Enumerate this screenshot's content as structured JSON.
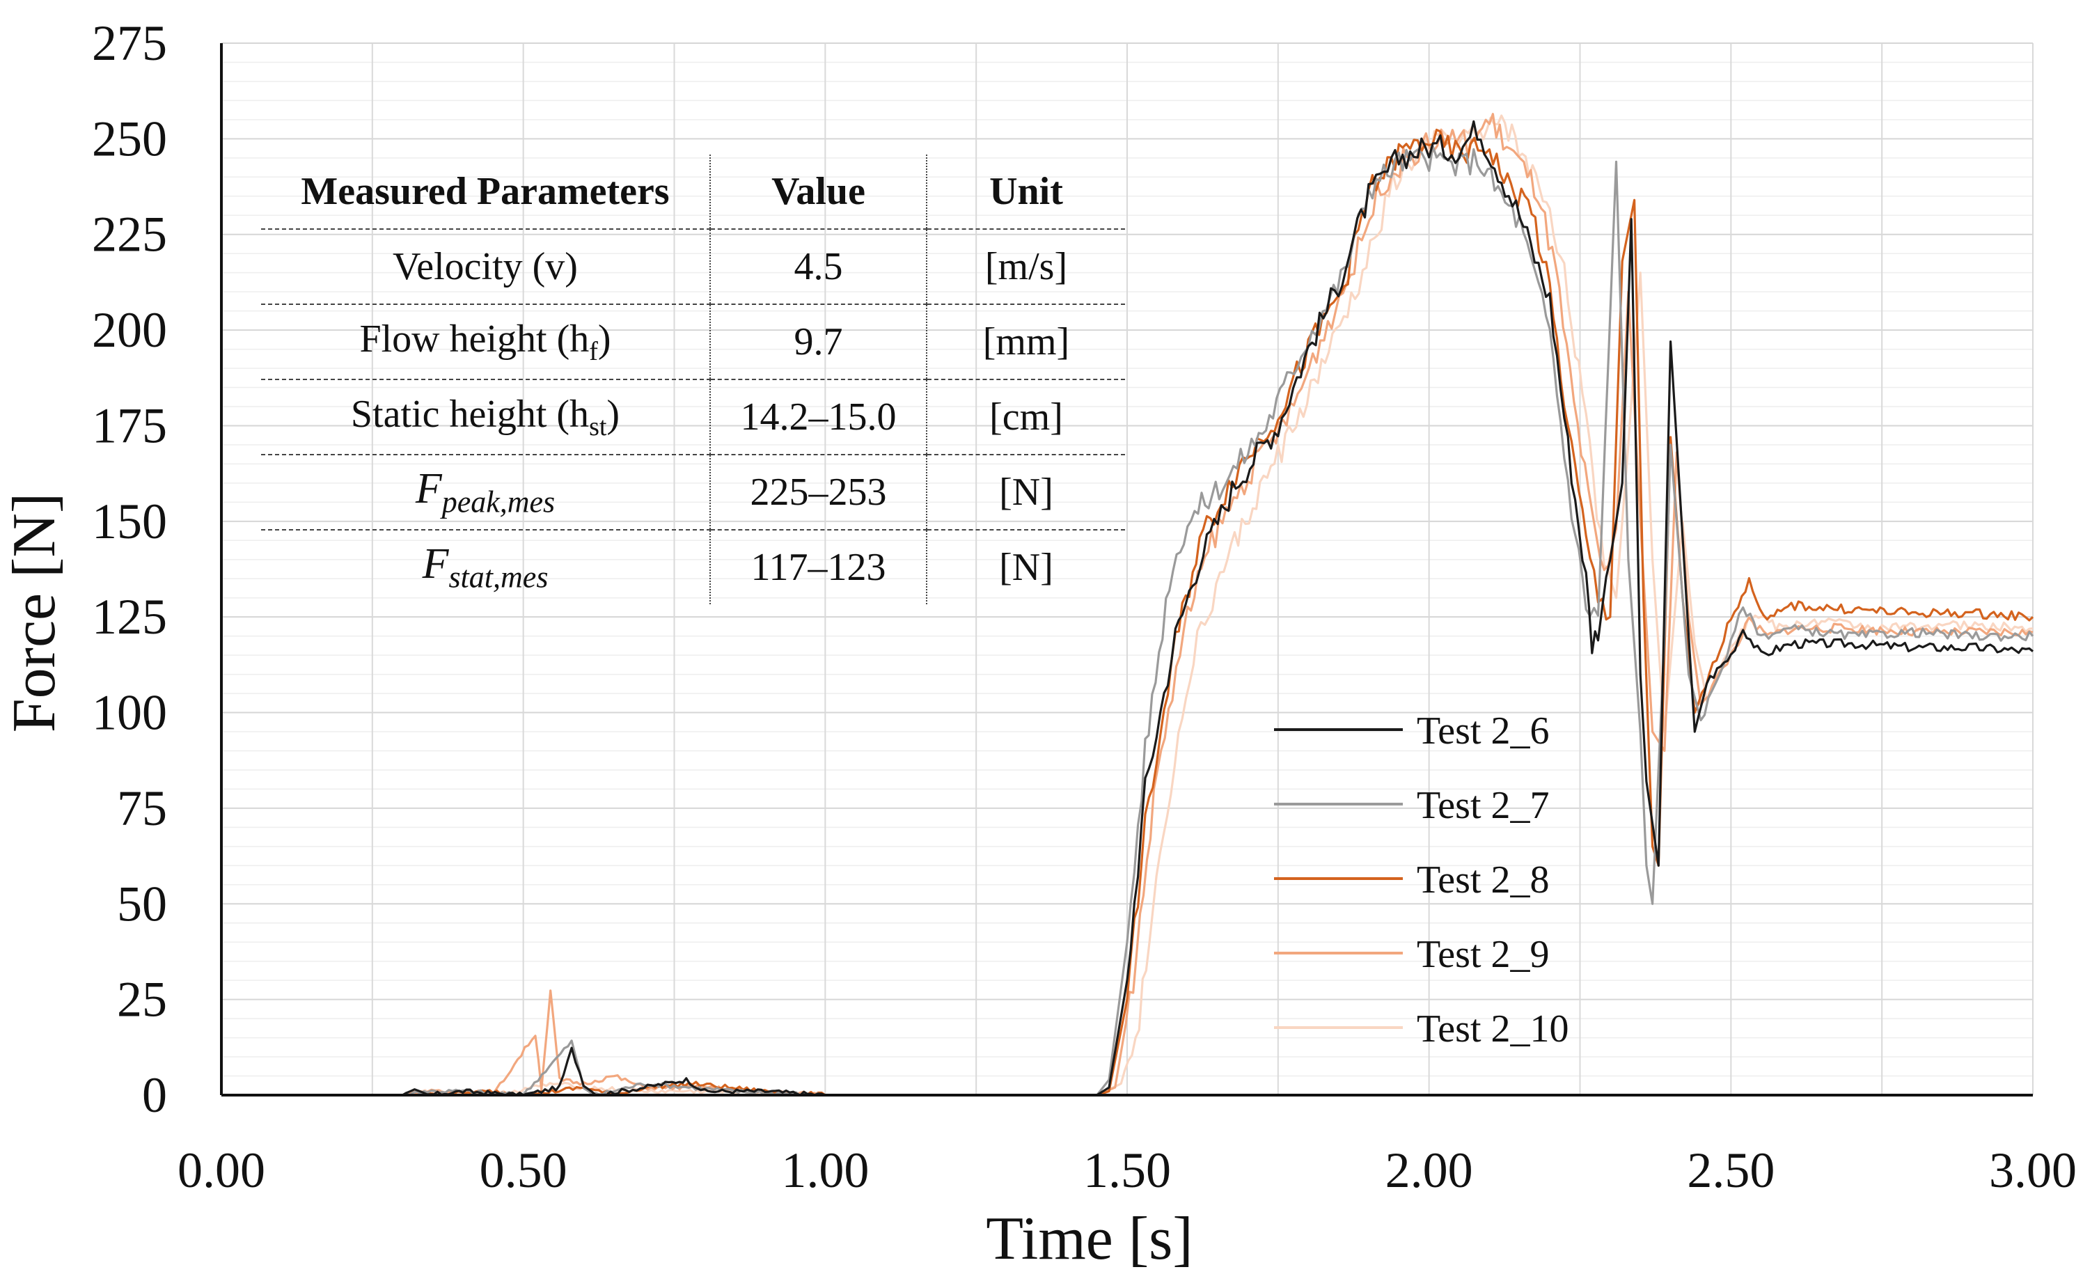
{
  "chart_data": {
    "type": "line",
    "title": "",
    "xlabel": "Time [s]",
    "ylabel": "Force [N]",
    "xlim": [
      0,
      3
    ],
    "ylim": [
      0,
      275
    ],
    "xticks": [
      "0.00",
      "0.50",
      "1.00",
      "1.50",
      "2.00",
      "2.50",
      "3.00"
    ],
    "yticks": [
      "0",
      "25",
      "50",
      "75",
      "100",
      "125",
      "150",
      "175",
      "200",
      "225",
      "250",
      "275"
    ],
    "legend_position": "lower-center-right",
    "series": [
      {
        "name": "Test 2_6",
        "color": "#1a1a1a",
        "points": [
          [
            0,
            0
          ],
          [
            0.3,
            0
          ],
          [
            0.32,
            1
          ],
          [
            0.34,
            0
          ],
          [
            0.4,
            1
          ],
          [
            0.5,
            0
          ],
          [
            0.56,
            2
          ],
          [
            0.58,
            12
          ],
          [
            0.6,
            3
          ],
          [
            0.62,
            0
          ],
          [
            0.7,
            2
          ],
          [
            0.77,
            4
          ],
          [
            0.8,
            1
          ],
          [
            0.9,
            1
          ],
          [
            1.0,
            0
          ],
          [
            1.2,
            0
          ],
          [
            1.45,
            0
          ],
          [
            1.47,
            2
          ],
          [
            1.5,
            30
          ],
          [
            1.53,
            80
          ],
          [
            1.58,
            120
          ],
          [
            1.62,
            140
          ],
          [
            1.68,
            160
          ],
          [
            1.75,
            175
          ],
          [
            1.8,
            195
          ],
          [
            1.85,
            212
          ],
          [
            1.9,
            235
          ],
          [
            1.95,
            245
          ],
          [
            2.0,
            248
          ],
          [
            2.05,
            247
          ],
          [
            2.08,
            253
          ],
          [
            2.12,
            240
          ],
          [
            2.15,
            230
          ],
          [
            2.2,
            208
          ],
          [
            2.23,
            170
          ],
          [
            2.26,
            135
          ],
          [
            2.27,
            118
          ],
          [
            2.28,
            122
          ],
          [
            2.3,
            140
          ],
          [
            2.32,
            160
          ],
          [
            2.335,
            229
          ],
          [
            2.35,
            110
          ],
          [
            2.36,
            82
          ],
          [
            2.38,
            60
          ],
          [
            2.4,
            197
          ],
          [
            2.43,
            120
          ],
          [
            2.44,
            95
          ],
          [
            2.46,
            108
          ],
          [
            2.5,
            115
          ],
          [
            2.52,
            122
          ],
          [
            2.55,
            115
          ],
          [
            2.6,
            118
          ],
          [
            2.7,
            118
          ],
          [
            2.8,
            117
          ],
          [
            2.9,
            117
          ],
          [
            3.0,
            116
          ]
        ]
      },
      {
        "name": "Test 2_7",
        "color": "#9a9a9a",
        "points": [
          [
            0,
            0
          ],
          [
            0.3,
            0
          ],
          [
            0.33,
            1
          ],
          [
            0.4,
            1
          ],
          [
            0.5,
            0
          ],
          [
            0.58,
            14
          ],
          [
            0.6,
            2
          ],
          [
            0.62,
            0
          ],
          [
            0.7,
            3
          ],
          [
            0.78,
            2
          ],
          [
            0.85,
            1
          ],
          [
            1.0,
            0
          ],
          [
            1.2,
            0
          ],
          [
            1.45,
            0
          ],
          [
            1.47,
            4
          ],
          [
            1.5,
            40
          ],
          [
            1.53,
            90
          ],
          [
            1.57,
            135
          ],
          [
            1.6,
            150
          ],
          [
            1.67,
            162
          ],
          [
            1.73,
            175
          ],
          [
            1.8,
            198
          ],
          [
            1.86,
            215
          ],
          [
            1.9,
            237
          ],
          [
            1.95,
            244
          ],
          [
            2.0,
            245
          ],
          [
            2.05,
            243
          ],
          [
            2.08,
            245
          ],
          [
            2.12,
            235
          ],
          [
            2.15,
            228
          ],
          [
            2.2,
            200
          ],
          [
            2.23,
            160
          ],
          [
            2.26,
            128
          ],
          [
            2.28,
            125
          ],
          [
            2.31,
            244
          ],
          [
            2.33,
            140
          ],
          [
            2.35,
            95
          ],
          [
            2.36,
            60
          ],
          [
            2.37,
            50
          ],
          [
            2.39,
            120
          ],
          [
            2.4,
            170
          ],
          [
            2.43,
            110
          ],
          [
            2.45,
            98
          ],
          [
            2.5,
            118
          ],
          [
            2.52,
            128
          ],
          [
            2.55,
            120
          ],
          [
            2.6,
            122
          ],
          [
            2.7,
            120
          ],
          [
            2.8,
            121
          ],
          [
            2.9,
            120
          ],
          [
            3.0,
            120
          ]
        ]
      },
      {
        "name": "Test 2_8",
        "color": "#d4631e",
        "points": [
          [
            0,
            0
          ],
          [
            0.3,
            0
          ],
          [
            0.35,
            0
          ],
          [
            0.45,
            1
          ],
          [
            0.5,
            0
          ],
          [
            0.6,
            2
          ],
          [
            0.65,
            0
          ],
          [
            0.7,
            2
          ],
          [
            0.78,
            3
          ],
          [
            0.9,
            1
          ],
          [
            1.0,
            0
          ],
          [
            1.2,
            0
          ],
          [
            1.45,
            0
          ],
          [
            1.47,
            1
          ],
          [
            1.5,
            25
          ],
          [
            1.53,
            70
          ],
          [
            1.58,
            118
          ],
          [
            1.62,
            145
          ],
          [
            1.68,
            163
          ],
          [
            1.75,
            178
          ],
          [
            1.8,
            195
          ],
          [
            1.86,
            212
          ],
          [
            1.9,
            236
          ],
          [
            1.95,
            246
          ],
          [
            2.0,
            250
          ],
          [
            2.05,
            246
          ],
          [
            2.1,
            248
          ],
          [
            2.13,
            238
          ],
          [
            2.17,
            232
          ],
          [
            2.2,
            210
          ],
          [
            2.23,
            175
          ],
          [
            2.26,
            145
          ],
          [
            2.28,
            130
          ],
          [
            2.3,
            125
          ],
          [
            2.32,
            218
          ],
          [
            2.34,
            234
          ],
          [
            2.355,
            130
          ],
          [
            2.37,
            65
          ],
          [
            2.38,
            60
          ],
          [
            2.4,
            172
          ],
          [
            2.42,
            130
          ],
          [
            2.44,
            100
          ],
          [
            2.47,
            112
          ],
          [
            2.5,
            125
          ],
          [
            2.53,
            134
          ],
          [
            2.56,
            124
          ],
          [
            2.6,
            128
          ],
          [
            2.7,
            127
          ],
          [
            2.8,
            126
          ],
          [
            2.9,
            126
          ],
          [
            3.0,
            125
          ]
        ]
      },
      {
        "name": "Test 2_9",
        "color": "#f2a77e",
        "points": [
          [
            0,
            0
          ],
          [
            0.3,
            0
          ],
          [
            0.33,
            1
          ],
          [
            0.45,
            0
          ],
          [
            0.52,
            16
          ],
          [
            0.53,
            2
          ],
          [
            0.545,
            27
          ],
          [
            0.56,
            4
          ],
          [
            0.6,
            3
          ],
          [
            0.65,
            5
          ],
          [
            0.7,
            2
          ],
          [
            0.8,
            2
          ],
          [
            0.9,
            1
          ],
          [
            1.0,
            0
          ],
          [
            1.2,
            0
          ],
          [
            1.45,
            0
          ],
          [
            1.48,
            2
          ],
          [
            1.51,
            30
          ],
          [
            1.55,
            85
          ],
          [
            1.6,
            125
          ],
          [
            1.64,
            145
          ],
          [
            1.7,
            162
          ],
          [
            1.77,
            178
          ],
          [
            1.82,
            197
          ],
          [
            1.87,
            215
          ],
          [
            1.92,
            238
          ],
          [
            1.97,
            246
          ],
          [
            2.02,
            250
          ],
          [
            2.07,
            249
          ],
          [
            2.1,
            255
          ],
          [
            2.14,
            246
          ],
          [
            2.18,
            236
          ],
          [
            2.21,
            215
          ],
          [
            2.24,
            180
          ],
          [
            2.27,
            150
          ],
          [
            2.29,
            135
          ],
          [
            2.31,
            148
          ],
          [
            2.33,
            210
          ],
          [
            2.35,
            150
          ],
          [
            2.37,
            95
          ],
          [
            2.39,
            90
          ],
          [
            2.41,
            168
          ],
          [
            2.43,
            125
          ],
          [
            2.45,
            102
          ],
          [
            2.5,
            115
          ],
          [
            2.53,
            124
          ],
          [
            2.56,
            120
          ],
          [
            2.6,
            122
          ],
          [
            2.7,
            122
          ],
          [
            2.8,
            121
          ],
          [
            2.9,
            121
          ],
          [
            3.0,
            121
          ]
        ]
      },
      {
        "name": "Test 2_10",
        "color": "#f9d6c2",
        "points": [
          [
            0,
            0
          ],
          [
            0.3,
            0
          ],
          [
            0.35,
            1
          ],
          [
            0.45,
            0
          ],
          [
            0.55,
            3
          ],
          [
            0.6,
            2
          ],
          [
            0.7,
            1
          ],
          [
            0.8,
            1
          ],
          [
            1.0,
            0
          ],
          [
            1.2,
            0
          ],
          [
            1.45,
            0
          ],
          [
            1.49,
            3
          ],
          [
            1.52,
            20
          ],
          [
            1.56,
            70
          ],
          [
            1.61,
            115
          ],
          [
            1.66,
            138
          ],
          [
            1.72,
            158
          ],
          [
            1.78,
            176
          ],
          [
            1.84,
            196
          ],
          [
            1.89,
            214
          ],
          [
            1.94,
            238
          ],
          [
            1.99,
            247
          ],
          [
            2.04,
            251
          ],
          [
            2.09,
            250
          ],
          [
            2.12,
            256
          ],
          [
            2.16,
            244
          ],
          [
            2.2,
            232
          ],
          [
            2.23,
            210
          ],
          [
            2.26,
            175
          ],
          [
            2.29,
            140
          ],
          [
            2.31,
            130
          ],
          [
            2.33,
            170
          ],
          [
            2.35,
            215
          ],
          [
            2.37,
            140
          ],
          [
            2.39,
            95
          ],
          [
            2.42,
            150
          ],
          [
            2.44,
            118
          ],
          [
            2.46,
            104
          ],
          [
            2.5,
            118
          ],
          [
            2.54,
            126
          ],
          [
            2.58,
            122
          ],
          [
            2.65,
            124
          ],
          [
            2.75,
            122
          ],
          [
            2.85,
            123
          ],
          [
            3.0,
            122
          ]
        ]
      }
    ],
    "table": {
      "headers": [
        "Measured Parameters",
        "Value",
        "Unit"
      ],
      "rows": [
        {
          "param_main": "Velocity (v)",
          "param_sub": "",
          "param_tail": "",
          "value": "4.5",
          "unit": "[m/s]",
          "math": false
        },
        {
          "param_main": "Flow height (h",
          "param_sub": "f",
          "param_tail": ")",
          "value": "9.7",
          "unit": "[mm]",
          "math": false
        },
        {
          "param_main": "Static height (h",
          "param_sub": "st",
          "param_tail": ")",
          "value": "14.2–15.0",
          "unit": "[cm]",
          "math": false
        },
        {
          "param_main": "F",
          "param_sub": "peak,mes",
          "param_tail": "",
          "value": "225–253",
          "unit": "[N]",
          "math": true
        },
        {
          "param_main": "F",
          "param_sub": "stat,mes",
          "param_tail": "",
          "value": "117–123",
          "unit": "[N]",
          "math": true
        }
      ]
    }
  }
}
